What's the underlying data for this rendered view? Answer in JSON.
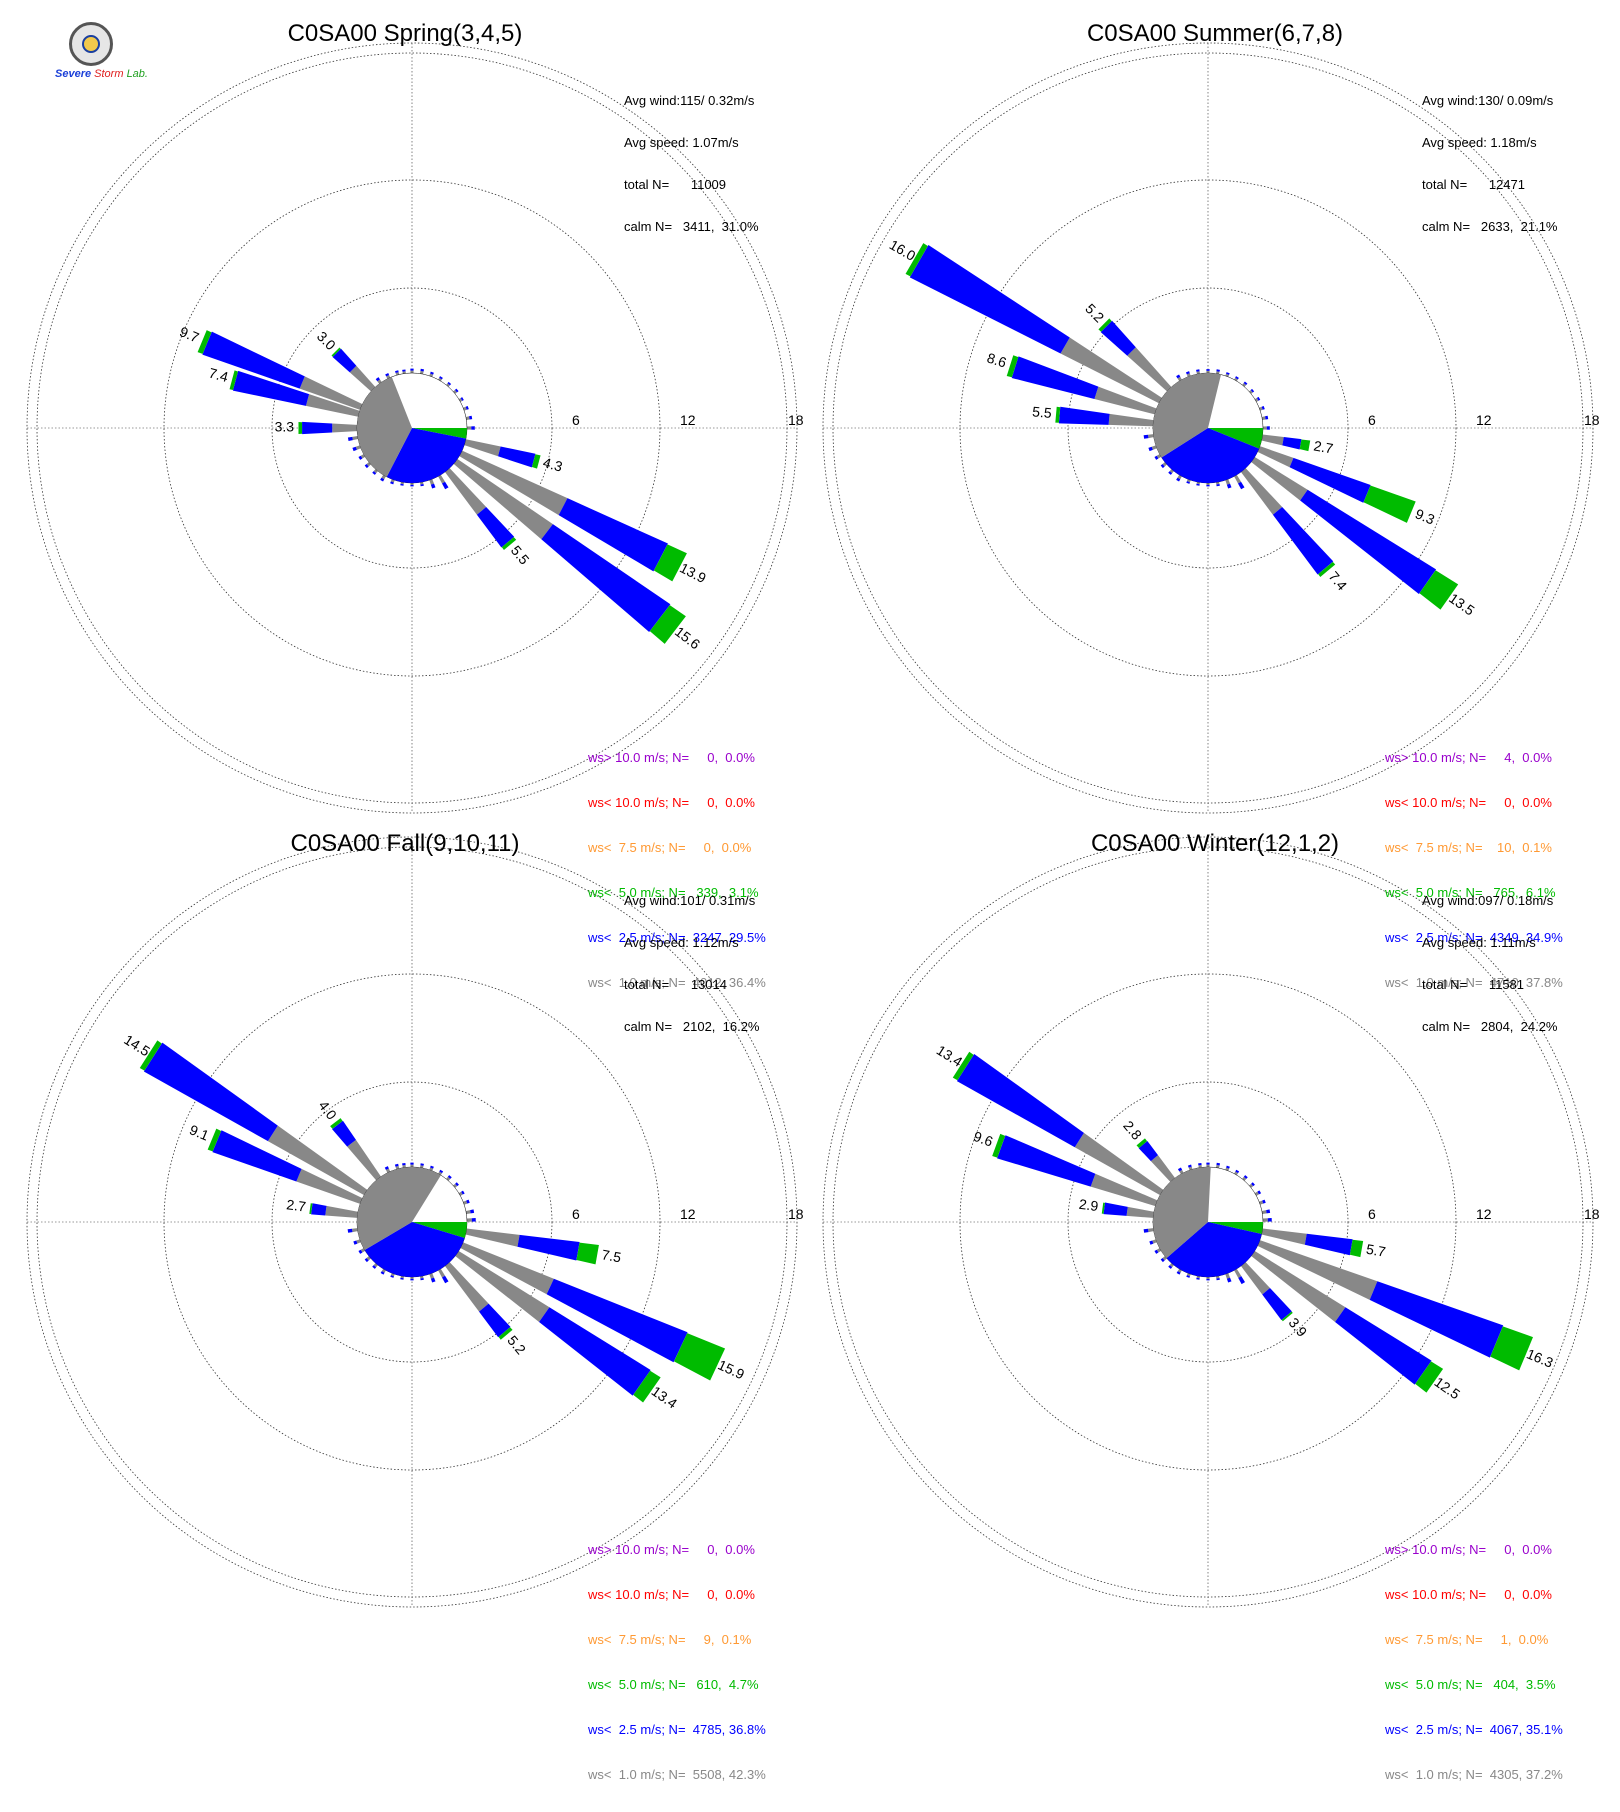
{
  "logo": {
    "brand_severe": "Severe",
    "brand_storm": "Storm",
    "brand_lab": "Lab."
  },
  "panels": [
    {
      "title": "C0SA00 Spring(3,4,5)",
      "stats": [
        "Avg wind:115/ 0.32m/s",
        "Avg speed: 1.07m/s",
        "total N=      11009",
        "calm N=   3411,  31.0%"
      ],
      "legend": [
        {
          "text": "ws> 10.0 m/s; N=     0,  0.0%",
          "color": "#9900cc"
        },
        {
          "text": "ws< 10.0 m/s; N=     0,  0.0%",
          "color": "#ff0000"
        },
        {
          "text": "ws<  7.5 m/s; N=     0,  0.0%",
          "color": "#ff9933"
        },
        {
          "text": "ws<  5.0 m/s; N=   339,  3.1%",
          "color": "#00bb00"
        },
        {
          "text": "ws<  2.5 m/s; N=  3247, 29.5%",
          "color": "#0000ff"
        },
        {
          "text": "ws<  1.0 m/s; N=  4012, 36.4%",
          "color": "#888888"
        }
      ]
    },
    {
      "title": "C0SA00 Summer(6,7,8)",
      "stats": [
        "Avg wind:130/ 0.09m/s",
        "Avg speed: 1.18m/s",
        "total N=      12471",
        "calm N=   2633,  21.1%"
      ],
      "legend": [
        {
          "text": "ws> 10.0 m/s; N=     4,  0.0%",
          "color": "#9900cc"
        },
        {
          "text": "ws< 10.0 m/s; N=     0,  0.0%",
          "color": "#ff0000"
        },
        {
          "text": "ws<  7.5 m/s; N=    10,  0.1%",
          "color": "#ff9933"
        },
        {
          "text": "ws<  5.0 m/s; N=   765,  6.1%",
          "color": "#00bb00"
        },
        {
          "text": "ws<  2.5 m/s; N=  4349, 34.9%",
          "color": "#0000ff"
        },
        {
          "text": "ws<  1.0 m/s; N=  4710, 37.8%",
          "color": "#888888"
        }
      ]
    },
    {
      "title": "C0SA00 Fall(9,10,11)",
      "stats": [
        "Avg wind:101/ 0.31m/s",
        "Avg speed: 1.12m/s",
        "total N=      13014",
        "calm N=   2102,  16.2%"
      ],
      "legend": [
        {
          "text": "ws> 10.0 m/s; N=     0,  0.0%",
          "color": "#9900cc"
        },
        {
          "text": "ws< 10.0 m/s; N=     0,  0.0%",
          "color": "#ff0000"
        },
        {
          "text": "ws<  7.5 m/s; N=     9,  0.1%",
          "color": "#ff9933"
        },
        {
          "text": "ws<  5.0 m/s; N=   610,  4.7%",
          "color": "#00bb00"
        },
        {
          "text": "ws<  2.5 m/s; N=  4785, 36.8%",
          "color": "#0000ff"
        },
        {
          "text": "ws<  1.0 m/s; N=  5508, 42.3%",
          "color": "#888888"
        }
      ]
    },
    {
      "title": "C0SA00 Winter(12,1,2)",
      "stats": [
        "Avg wind:097/ 0.18m/s",
        "Avg speed: 1.11m/s",
        "total N=      11581",
        "calm N=   2804,  24.2%"
      ],
      "legend": [
        {
          "text": "ws> 10.0 m/s; N=     0,  0.0%",
          "color": "#9900cc"
        },
        {
          "text": "ws< 10.0 m/s; N=     0,  0.0%",
          "color": "#ff0000"
        },
        {
          "text": "ws<  7.5 m/s; N=     1,  0.0%",
          "color": "#ff9933"
        },
        {
          "text": "ws<  5.0 m/s; N=   404,  3.5%",
          "color": "#00bb00"
        },
        {
          "text": "ws<  2.5 m/s; N=  4067, 35.1%",
          "color": "#0000ff"
        },
        {
          "text": "ws<  1.0 m/s; N=  4305, 37.2%",
          "color": "#888888"
        }
      ]
    }
  ],
  "chart_data": [
    {
      "type": "wind-rose",
      "title": "C0SA00 Spring(3,4,5)",
      "radial_ticks": [
        "6",
        "12",
        "18"
      ],
      "rmax": 21,
      "colors": {
        "gray": "#888888",
        "blue": "#0000ff",
        "green": "#00bb00"
      },
      "calm_pie": [
        {
          "color": "#888888",
          "pct": 36.4
        },
        {
          "color": "#0000ff",
          "pct": 29.5
        },
        {
          "color": "#00bb00",
          "pct": 3.1
        }
      ],
      "bars": [
        {
          "dir": 292.5,
          "gray": 3.6,
          "blue": 5.8,
          "green": 0.3,
          "label": "9.7"
        },
        {
          "dir": 315,
          "gray": 1.6,
          "blue": 1.3,
          "green": 0.1,
          "label": "3.0"
        },
        {
          "dir": 270,
          "gray": 1.4,
          "blue": 1.7,
          "green": 0.2,
          "label": "3.3"
        },
        {
          "dir": 285,
          "gray": 3.0,
          "blue": 4.2,
          "green": 0.2,
          "label": "7.4"
        },
        {
          "dir": 105,
          "gray": 2.0,
          "blue": 2.0,
          "green": 0.3,
          "label": "4.3"
        },
        {
          "dir": 117.5,
          "gray": 6.5,
          "blue": 6.2,
          "green": 1.2,
          "label": "13.9"
        },
        {
          "dir": 127.5,
          "gray": 6.5,
          "blue": 8.0,
          "green": 1.1,
          "label": "15.6"
        },
        {
          "dir": 140,
          "gray": 3.0,
          "blue": 2.3,
          "green": 0.2,
          "label": "5.5"
        }
      ],
      "small_bars": [
        {
          "dir": 0,
          "v": 0.45
        },
        {
          "dir": 10,
          "v": 0.5
        },
        {
          "dir": 20,
          "v": 0.45
        },
        {
          "dir": 30,
          "v": 0.4
        },
        {
          "dir": 40,
          "v": 0.4
        },
        {
          "dir": 50,
          "v": 0.45
        },
        {
          "dir": 60,
          "v": 0.4
        },
        {
          "dir": 70,
          "v": 0.5
        },
        {
          "dir": 80,
          "v": 0.6
        },
        {
          "dir": 90,
          "v": 0.8
        },
        {
          "dir": 150,
          "v": 1.5
        },
        {
          "dir": 160,
          "v": 0.9
        },
        {
          "dir": 170,
          "v": 0.4
        },
        {
          "dir": 180,
          "v": 0.35
        },
        {
          "dir": 190,
          "v": 0.35
        },
        {
          "dir": 200,
          "v": 0.45
        },
        {
          "dir": 210,
          "v": 0.6
        },
        {
          "dir": 220,
          "v": 0.5
        },
        {
          "dir": 230,
          "v": 0.55
        },
        {
          "dir": 240,
          "v": 0.6
        },
        {
          "dir": 250,
          "v": 0.8
        },
        {
          "dir": 260,
          "v": 1.0
        },
        {
          "dir": 325,
          "v": 0.6
        },
        {
          "dir": 335,
          "v": 0.5
        },
        {
          "dir": 345,
          "v": 0.45
        },
        {
          "dir": 352,
          "v": 0.4
        }
      ]
    },
    {
      "type": "wind-rose",
      "title": "C0SA00 Summer(6,7,8)",
      "radial_ticks": [
        "6",
        "12",
        "18"
      ],
      "rmax": 21,
      "colors": {
        "gray": "#888888",
        "blue": "#0000ff",
        "green": "#00bb00"
      },
      "calm_pie": [
        {
          "color": "#888888",
          "pct": 37.8
        },
        {
          "color": "#0000ff",
          "pct": 34.9
        },
        {
          "color": "#00bb00",
          "pct": 6.1
        }
      ],
      "bars": [
        {
          "dir": 300,
          "gray": 6.2,
          "blue": 9.5,
          "green": 0.3,
          "label": "16.0"
        },
        {
          "dir": 315,
          "gray": 3.0,
          "blue": 2.0,
          "green": 0.2,
          "label": "5.2"
        },
        {
          "dir": 287.5,
          "gray": 3.5,
          "blue": 4.8,
          "green": 0.3,
          "label": "8.6"
        },
        {
          "dir": 275,
          "gray": 2.5,
          "blue": 2.8,
          "green": 0.2,
          "label": "5.5"
        },
        {
          "dir": 100,
          "gray": 1.2,
          "blue": 1.0,
          "green": 0.5,
          "label": "2.7"
        },
        {
          "dir": 112.5,
          "gray": 2.0,
          "blue": 4.6,
          "green": 2.7,
          "label": "9.3"
        },
        {
          "dir": 125,
          "gray": 3.5,
          "blue": 8.5,
          "green": 1.5,
          "label": "13.5"
        },
        {
          "dir": 140,
          "gray": 3.0,
          "blue": 4.2,
          "green": 0.2,
          "label": "7.4"
        }
      ],
      "small_bars": [
        {
          "dir": 0,
          "v": 0.4
        },
        {
          "dir": 10,
          "v": 0.45
        },
        {
          "dir": 20,
          "v": 0.4
        },
        {
          "dir": 30,
          "v": 0.4
        },
        {
          "dir": 40,
          "v": 0.45
        },
        {
          "dir": 50,
          "v": 0.4
        },
        {
          "dir": 60,
          "v": 0.45
        },
        {
          "dir": 70,
          "v": 0.5
        },
        {
          "dir": 80,
          "v": 0.6
        },
        {
          "dir": 90,
          "v": 0.7
        },
        {
          "dir": 150,
          "v": 1.5
        },
        {
          "dir": 160,
          "v": 0.9
        },
        {
          "dir": 170,
          "v": 0.4
        },
        {
          "dir": 180,
          "v": 0.35
        },
        {
          "dir": 190,
          "v": 0.35
        },
        {
          "dir": 200,
          "v": 0.4
        },
        {
          "dir": 210,
          "v": 0.6
        },
        {
          "dir": 220,
          "v": 0.5
        },
        {
          "dir": 230,
          "v": 0.55
        },
        {
          "dir": 240,
          "v": 0.6
        },
        {
          "dir": 250,
          "v": 0.8
        },
        {
          "dir": 262,
          "v": 1.0
        },
        {
          "dir": 330,
          "v": 0.6
        },
        {
          "dir": 340,
          "v": 0.5
        },
        {
          "dir": 350,
          "v": 0.45
        }
      ]
    },
    {
      "type": "wind-rose",
      "title": "C0SA00 Fall(9,10,11)",
      "radial_ticks": [
        "6",
        "12",
        "18"
      ],
      "rmax": 21,
      "colors": {
        "gray": "#888888",
        "blue": "#0000ff",
        "green": "#00bb00"
      },
      "calm_pie": [
        {
          "color": "#888888",
          "pct": 42.3
        },
        {
          "color": "#0000ff",
          "pct": 36.8
        },
        {
          "color": "#00bb00",
          "pct": 4.7
        }
      ],
      "bars": [
        {
          "dir": 302.5,
          "gray": 6.2,
          "blue": 8.0,
          "green": 0.3,
          "label": "14.5"
        },
        {
          "dir": 322.5,
          "gray": 2.5,
          "blue": 1.3,
          "green": 0.2,
          "label": "4.0"
        },
        {
          "dir": 292.5,
          "gray": 3.8,
          "blue": 5.0,
          "green": 0.3,
          "label": "9.1"
        },
        {
          "dir": 277.5,
          "gray": 1.8,
          "blue": 0.8,
          "green": 0.1,
          "label": "2.7"
        },
        {
          "dir": 100,
          "gray": 3.0,
          "blue": 3.4,
          "green": 1.1,
          "label": "7.5"
        },
        {
          "dir": 115,
          "gray": 5.5,
          "blue": 8.1,
          "green": 2.3,
          "label": "15.9"
        },
        {
          "dir": 125,
          "gray": 6.0,
          "blue": 6.7,
          "green": 0.7,
          "label": "13.4"
        },
        {
          "dir": 140,
          "gray": 3.2,
          "blue": 1.8,
          "green": 0.2,
          "label": "5.2"
        }
      ],
      "small_bars": [
        {
          "dir": 0,
          "v": 0.45
        },
        {
          "dir": 10,
          "v": 0.45
        },
        {
          "dir": 20,
          "v": 0.45
        },
        {
          "dir": 30,
          "v": 0.45
        },
        {
          "dir": 40,
          "v": 0.5
        },
        {
          "dir": 50,
          "v": 0.5
        },
        {
          "dir": 60,
          "v": 0.5
        },
        {
          "dir": 70,
          "v": 0.6
        },
        {
          "dir": 80,
          "v": 0.8
        },
        {
          "dir": 88,
          "v": 0.9
        },
        {
          "dir": 150,
          "v": 1.5
        },
        {
          "dir": 160,
          "v": 0.9
        },
        {
          "dir": 170,
          "v": 0.4
        },
        {
          "dir": 180,
          "v": 0.35
        },
        {
          "dir": 190,
          "v": 0.35
        },
        {
          "dir": 200,
          "v": 0.4
        },
        {
          "dir": 210,
          "v": 0.5
        },
        {
          "dir": 220,
          "v": 0.5
        },
        {
          "dir": 230,
          "v": 0.55
        },
        {
          "dir": 240,
          "v": 0.6
        },
        {
          "dir": 250,
          "v": 0.7
        },
        {
          "dir": 262,
          "v": 1.0
        },
        {
          "dir": 335,
          "v": 0.6
        },
        {
          "dir": 345,
          "v": 0.5
        },
        {
          "dir": 352,
          "v": 0.45
        }
      ]
    },
    {
      "type": "wind-rose",
      "title": "C0SA00 Winter(12,1,2)",
      "radial_ticks": [
        "6",
        "12",
        "18"
      ],
      "rmax": 21,
      "colors": {
        "gray": "#888888",
        "blue": "#0000ff",
        "green": "#00bb00"
      },
      "calm_pie": [
        {
          "color": "#888888",
          "pct": 37.2
        },
        {
          "color": "#0000ff",
          "pct": 35.1
        },
        {
          "color": "#00bb00",
          "pct": 3.5
        }
      ],
      "bars": [
        {
          "dir": 302.5,
          "gray": 5.5,
          "blue": 7.6,
          "green": 0.3,
          "label": "13.4"
        },
        {
          "dir": 320,
          "gray": 1.6,
          "blue": 1.0,
          "green": 0.2,
          "label": "2.8"
        },
        {
          "dir": 290,
          "gray": 3.8,
          "blue": 5.5,
          "green": 0.3,
          "label": "9.6"
        },
        {
          "dir": 277.5,
          "gray": 1.5,
          "blue": 1.3,
          "green": 0.1,
          "label": "2.9"
        },
        {
          "dir": 100,
          "gray": 2.5,
          "blue": 2.6,
          "green": 0.6,
          "label": "5.7"
        },
        {
          "dir": 112.5,
          "gray": 7.0,
          "blue": 7.5,
          "green": 1.8,
          "label": "16.3"
        },
        {
          "dir": 125,
          "gray": 6.0,
          "blue": 5.7,
          "green": 0.8,
          "label": "12.5"
        },
        {
          "dir": 140,
          "gray": 2.0,
          "blue": 1.8,
          "green": 0.1,
          "label": "3.9"
        }
      ],
      "small_bars": [
        {
          "dir": 0,
          "v": 0.45
        },
        {
          "dir": 10,
          "v": 0.5
        },
        {
          "dir": 20,
          "v": 0.45
        },
        {
          "dir": 30,
          "v": 0.45
        },
        {
          "dir": 40,
          "v": 0.5
        },
        {
          "dir": 50,
          "v": 0.5
        },
        {
          "dir": 60,
          "v": 0.55
        },
        {
          "dir": 70,
          "v": 0.6
        },
        {
          "dir": 80,
          "v": 0.8
        },
        {
          "dir": 88,
          "v": 0.9
        },
        {
          "dir": 150,
          "v": 1.6
        },
        {
          "dir": 160,
          "v": 0.9
        },
        {
          "dir": 170,
          "v": 0.4
        },
        {
          "dir": 180,
          "v": 0.35
        },
        {
          "dir": 190,
          "v": 0.35
        },
        {
          "dir": 200,
          "v": 0.4
        },
        {
          "dir": 210,
          "v": 0.5
        },
        {
          "dir": 220,
          "v": 0.5
        },
        {
          "dir": 230,
          "v": 0.55
        },
        {
          "dir": 240,
          "v": 0.6
        },
        {
          "dir": 250,
          "v": 0.7
        },
        {
          "dir": 262,
          "v": 1.0
        },
        {
          "dir": 332,
          "v": 0.6
        },
        {
          "dir": 342,
          "v": 0.5
        },
        {
          "dir": 352,
          "v": 0.45
        }
      ]
    }
  ]
}
